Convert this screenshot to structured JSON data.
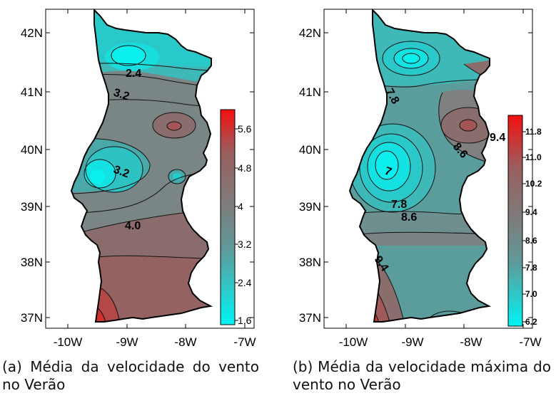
{
  "colors": {
    "cyan": "#00f4f4",
    "teal": "#5f9a9a",
    "grey": "#7d7d7d",
    "brown": "#9a5f5f",
    "red": "#f41010",
    "frame": "#000000"
  },
  "maps": [
    {
      "id": "a",
      "lat_ticks": [
        "42N",
        "41N",
        "40N",
        "39N",
        "38N",
        "37N"
      ],
      "lon_ticks": [
        "-10W",
        "-9W",
        "-8W",
        "-7W"
      ],
      "colorbar_ticks": [
        "5.6",
        "4.8",
        "4",
        "3.2",
        "2.4",
        "1.6"
      ],
      "contour_labels": [
        "2.4",
        "3.2",
        "3.2",
        "4.0"
      ],
      "caption": "(a) Média da velocidade do vento no Verão"
    },
    {
      "id": "b",
      "lat_ticks": [
        "42N",
        "41N",
        "40N",
        "39N",
        "38N",
        "37N"
      ],
      "lon_ticks": [
        "-10W",
        "-9W",
        "-8W",
        "-7W"
      ],
      "colorbar_ticks": [
        "11.8",
        "11.0",
        "10.2",
        "9.4",
        "8.6",
        "7.8",
        "7.0",
        "6.2"
      ],
      "contour_labels": [
        "7.8",
        "8.6",
        "9.4",
        "7",
        "7.8",
        "8.6",
        "9.4"
      ],
      "caption": "(b) Média da velocidade máxima do vento no Verão"
    }
  ]
}
